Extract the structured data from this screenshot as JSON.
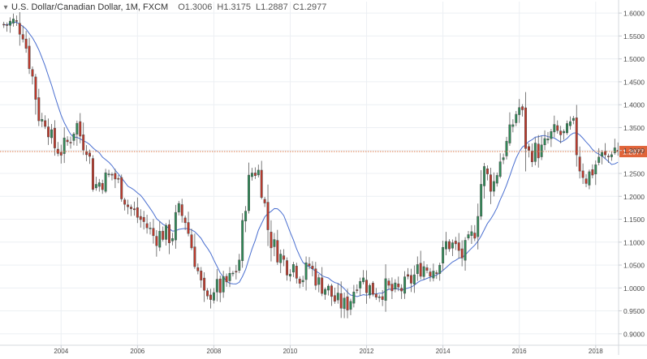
{
  "chart_data": {
    "type": "candlestick",
    "title": "U.S. Dollar/Canadian Dollar, 1M, FXCM",
    "symbol": "U.S. Dollar/Canadian Dollar",
    "interval": "1M",
    "source": "FXCM",
    "ohlc_legend": {
      "open": "O1.3006",
      "high": "H1.3175",
      "low": "L1.2887",
      "close": "C1.2977"
    },
    "last_price_label": "1.2977",
    "last_price": 1.2977,
    "ylim": [
      0.875,
      1.625
    ],
    "xlim": [
      2002.4,
      2018.6
    ],
    "y_ticks": [
      "0.9000",
      "0.9500",
      "1.0000",
      "1.0500",
      "1.1000",
      "1.1500",
      "1.2000",
      "1.2500",
      "1.3000",
      "1.3500",
      "1.4000",
      "1.4500",
      "1.5000",
      "1.5500",
      "1.6000"
    ],
    "x_ticks": [
      "2004",
      "2006",
      "2008",
      "2010",
      "2012",
      "2014",
      "2016",
      "2018"
    ],
    "grid": true,
    "colors": {
      "up": "#2e8b57",
      "down": "#c0392b",
      "ma": "#4a6fd0",
      "price_line": "#e07a4a",
      "price_label_bg": "#e0643a",
      "grid": "#eceff3",
      "axis_text": "#4a4a4a"
    },
    "close_anchors": [
      [
        2002.5,
        1.575
      ],
      [
        2002.75,
        1.58
      ],
      [
        2002.9,
        1.57
      ],
      [
        2003.0,
        1.56
      ],
      [
        2003.25,
        1.46
      ],
      [
        2003.45,
        1.36
      ],
      [
        2003.6,
        1.37
      ],
      [
        2003.8,
        1.31
      ],
      [
        2004.0,
        1.3
      ],
      [
        2004.2,
        1.32
      ],
      [
        2004.4,
        1.36
      ],
      [
        2004.55,
        1.32
      ],
      [
        2004.7,
        1.31
      ],
      [
        2004.85,
        1.22
      ],
      [
        2005.0,
        1.23
      ],
      [
        2005.2,
        1.24
      ],
      [
        2005.35,
        1.25
      ],
      [
        2005.55,
        1.22
      ],
      [
        2005.75,
        1.18
      ],
      [
        2005.95,
        1.16
      ],
      [
        2006.2,
        1.14
      ],
      [
        2006.45,
        1.11
      ],
      [
        2006.65,
        1.12
      ],
      [
        2006.9,
        1.11
      ],
      [
        2007.05,
        1.17
      ],
      [
        2007.25,
        1.15
      ],
      [
        2007.45,
        1.08
      ],
      [
        2007.6,
        1.03
      ],
      [
        2007.8,
        0.96
      ],
      [
        2007.95,
        1.0
      ],
      [
        2008.2,
        1.0
      ],
      [
        2008.45,
        1.02
      ],
      [
        2008.65,
        1.05
      ],
      [
        2008.8,
        1.17
      ],
      [
        2008.95,
        1.25
      ],
      [
        2009.15,
        1.26
      ],
      [
        2009.3,
        1.2
      ],
      [
        2009.45,
        1.11
      ],
      [
        2009.65,
        1.08
      ],
      [
        2009.9,
        1.05
      ],
      [
        2010.1,
        1.05
      ],
      [
        2010.3,
        1.02
      ],
      [
        2010.5,
        1.05
      ],
      [
        2010.75,
        1.01
      ],
      [
        2010.95,
        1.0
      ],
      [
        2011.2,
        0.97
      ],
      [
        2011.45,
        0.96
      ],
      [
        2011.6,
        0.98
      ],
      [
        2011.8,
        1.03
      ],
      [
        2012.05,
        1.0
      ],
      [
        2012.3,
        0.99
      ],
      [
        2012.5,
        1.0
      ],
      [
        2012.75,
        0.99
      ],
      [
        2012.95,
        1.0
      ],
      [
        2013.2,
        1.02
      ],
      [
        2013.45,
        1.05
      ],
      [
        2013.7,
        1.04
      ],
      [
        2013.95,
        1.06
      ],
      [
        2014.1,
        1.1
      ],
      [
        2014.3,
        1.09
      ],
      [
        2014.5,
        1.07
      ],
      [
        2014.7,
        1.1
      ],
      [
        2014.85,
        1.13
      ],
      [
        2015.05,
        1.26
      ],
      [
        2015.3,
        1.22
      ],
      [
        2015.5,
        1.28
      ],
      [
        2015.7,
        1.32
      ],
      [
        2015.9,
        1.38
      ],
      [
        2016.05,
        1.4
      ],
      [
        2016.2,
        1.29
      ],
      [
        2016.4,
        1.3
      ],
      [
        2016.6,
        1.3
      ],
      [
        2016.8,
        1.33
      ],
      [
        2016.95,
        1.34
      ],
      [
        2017.2,
        1.33
      ],
      [
        2017.4,
        1.36
      ],
      [
        2017.55,
        1.27
      ],
      [
        2017.75,
        1.24
      ],
      [
        2017.95,
        1.26
      ],
      [
        2018.1,
        1.29
      ],
      [
        2018.3,
        1.28
      ],
      [
        2018.45,
        1.31
      ],
      [
        2018.58,
        1.2977
      ]
    ]
  }
}
